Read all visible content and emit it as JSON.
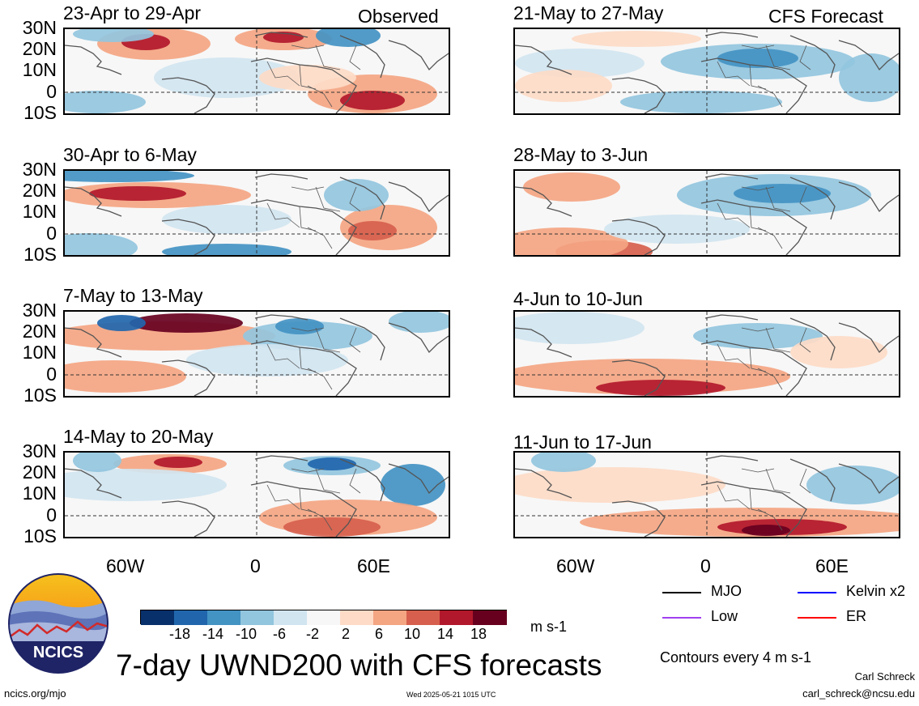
{
  "header": {
    "observed_label": "Observed",
    "forecast_label": "CFS Forecast"
  },
  "panels": {
    "observed": [
      {
        "title": "23-Apr to 29-Apr"
      },
      {
        "title": "30-Apr to 6-May"
      },
      {
        "title": "7-May to 13-May"
      },
      {
        "title": "14-May to 20-May"
      }
    ],
    "forecast": [
      {
        "title": "21-May to 27-May"
      },
      {
        "title": "28-May to 3-Jun"
      },
      {
        "title": "4-Jun to 10-Jun"
      },
      {
        "title": "11-Jun to 17-Jun"
      }
    ]
  },
  "lat_labels": [
    "30N",
    "20N",
    "10N",
    "0",
    "10S"
  ],
  "lon_labels": [
    "60W",
    "0",
    "60E"
  ],
  "colorbar": {
    "labels": [
      "-18",
      "-14",
      "-10",
      "-6",
      "-2",
      "2",
      "6",
      "10",
      "14",
      "18"
    ],
    "units": "m s-1",
    "colors": [
      "#08306b",
      "#2166ac",
      "#4393c3",
      "#92c5de",
      "#d1e5f0",
      "#f7f7f7",
      "#fddbc7",
      "#f4a582",
      "#d6604d",
      "#b2182b",
      "#67001f"
    ]
  },
  "legend": {
    "items": [
      {
        "label": "MJO",
        "color": "#000000"
      },
      {
        "label": "Kelvin x2",
        "color": "#0000ff"
      },
      {
        "label": "Low",
        "color": "#a040f0"
      },
      {
        "label": "ER",
        "color": "#ff0000"
      }
    ],
    "contours_note": "Contours every 4 m s-1"
  },
  "footer": {
    "title": "7-day UWND200 with CFS forecasts",
    "url": "ncics.org/mjo",
    "timestamp": "Wed 2025-05-21 1015 UTC",
    "author": "Carl Schreck",
    "email": "carl_schreck@ncsu.edu",
    "logo_text": "NCICS"
  }
}
